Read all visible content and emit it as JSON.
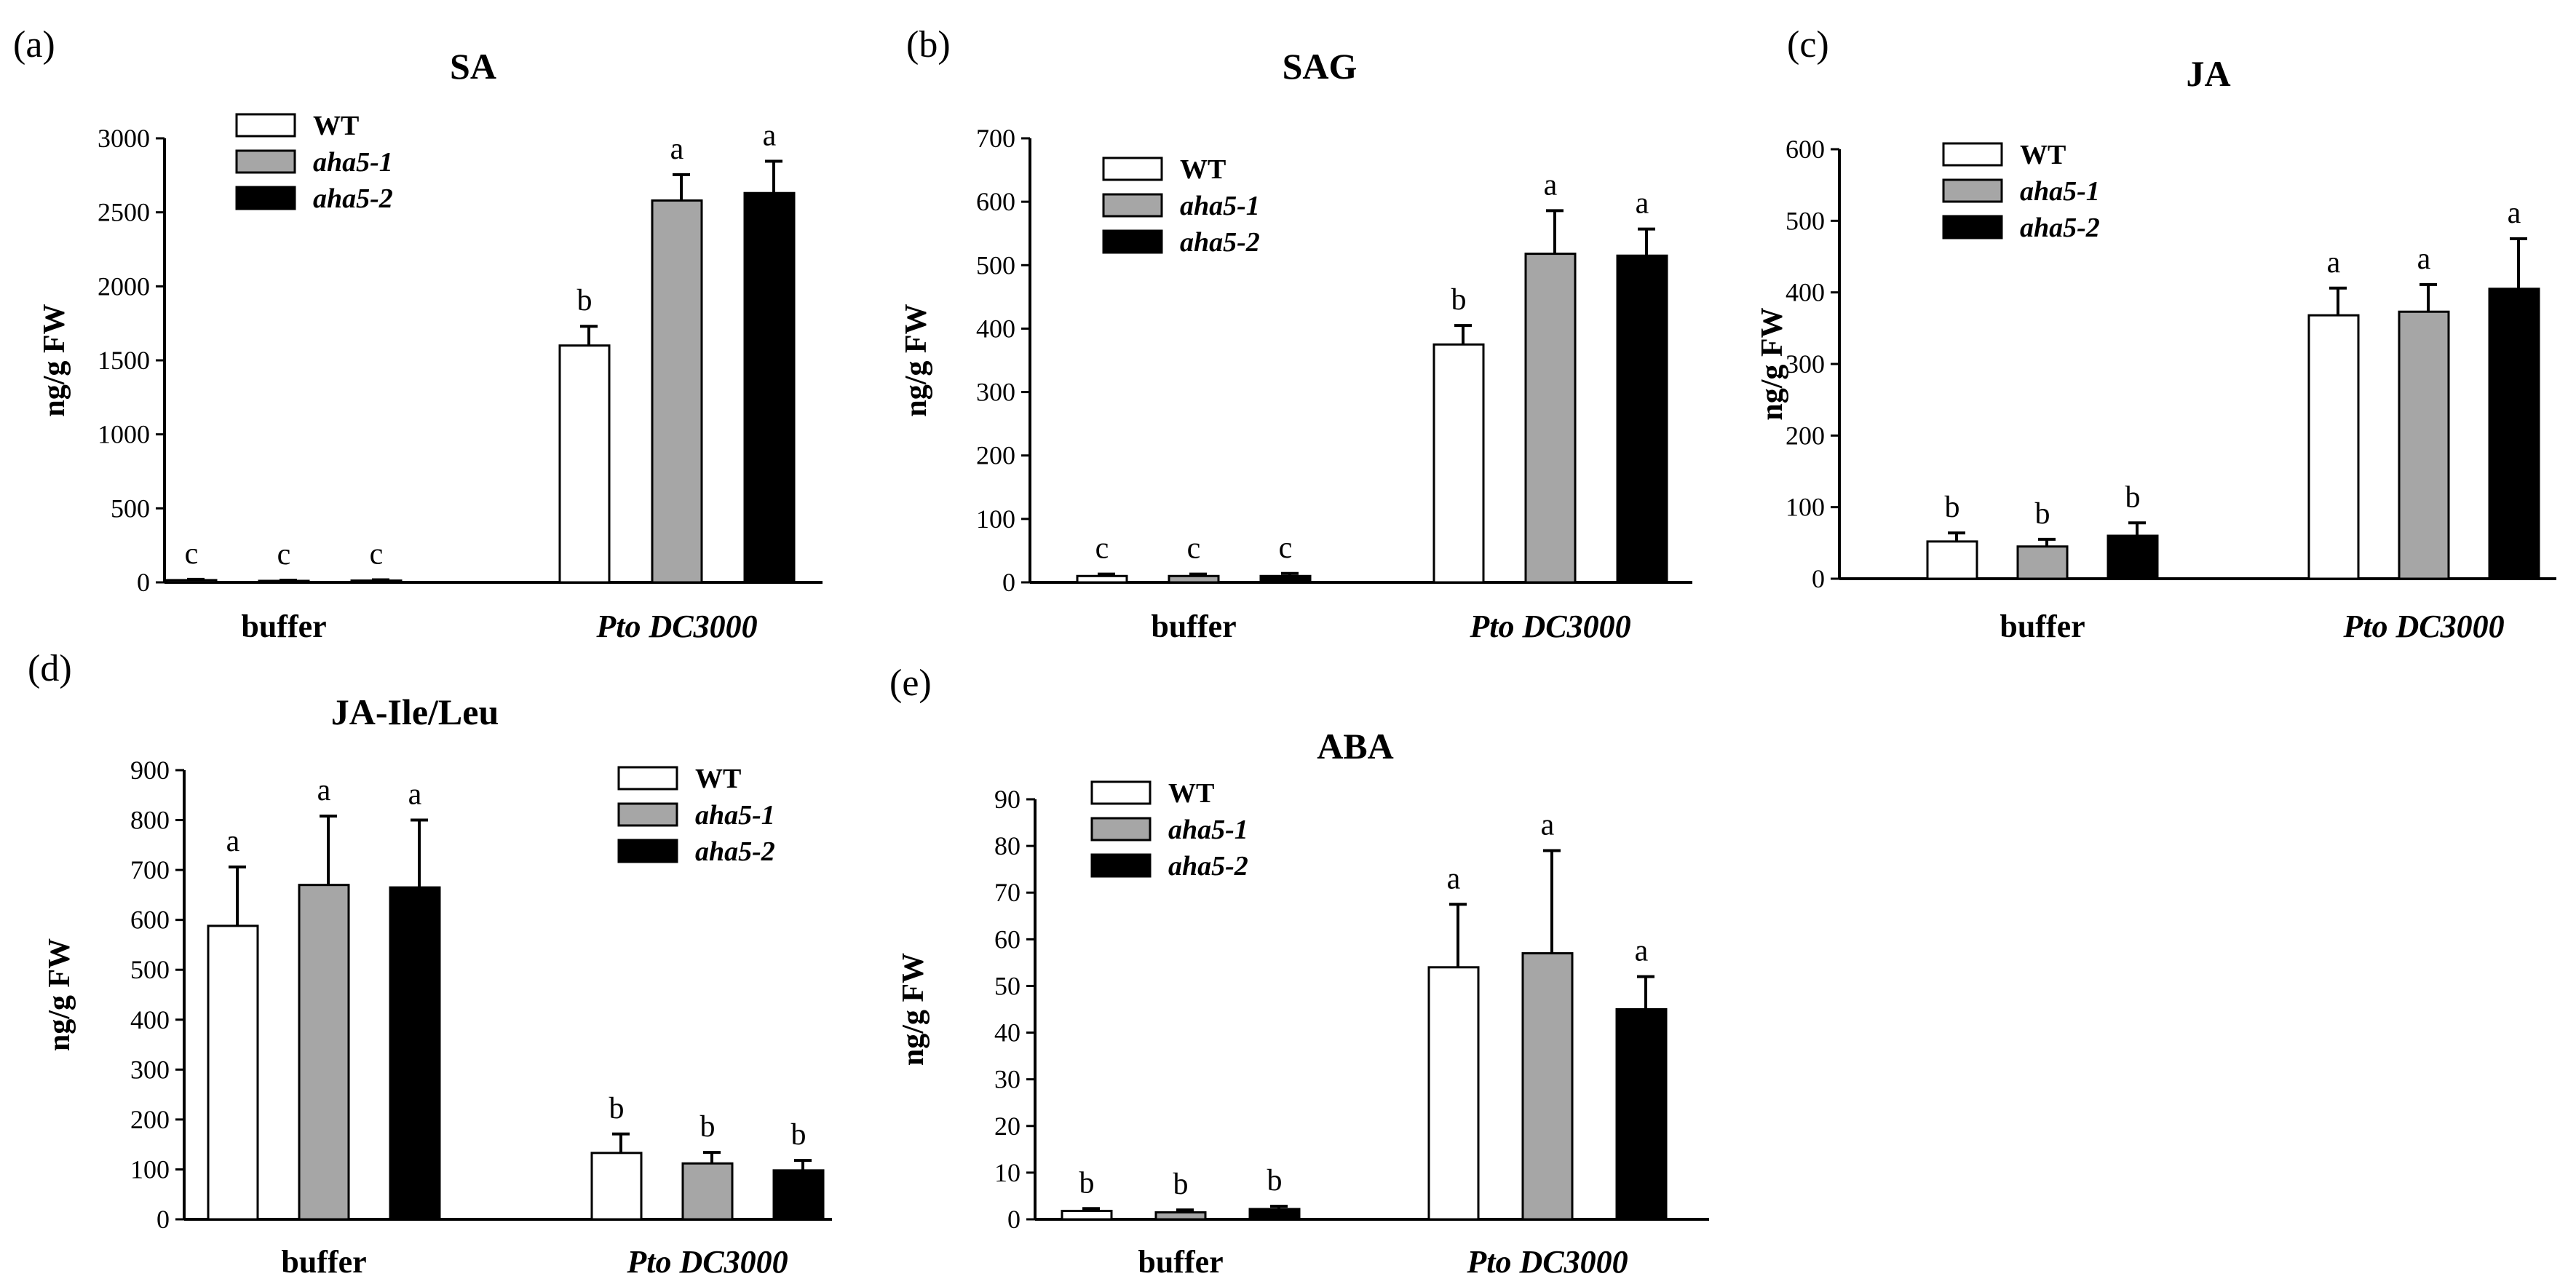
{
  "series_styles": [
    {
      "key": "WT",
      "fill": "#ffffff"
    },
    {
      "key": "aha5-1",
      "fill": "#a6a6a6"
    },
    {
      "key": "aha5-2",
      "fill": "#000000"
    }
  ],
  "chart_data": [
    {
      "type": "bar",
      "panel_label": "(a)",
      "title": "SA",
      "ylabel": "ng/g FW",
      "ylim": [
        0,
        3000
      ],
      "yticks": [
        0,
        500,
        1000,
        1500,
        2000,
        2500,
        3000
      ],
      "categories": [
        "buffer",
        "Pto DC3000"
      ],
      "legend_position": "top-left",
      "series": [
        {
          "name": "WT",
          "values": [
            15,
            1600
          ],
          "errors": [
            5,
            130
          ],
          "letters": [
            "c",
            "b"
          ]
        },
        {
          "name": "aha5-1",
          "values": [
            10,
            2580
          ],
          "errors": [
            5,
            175
          ],
          "letters": [
            "c",
            "a"
          ]
        },
        {
          "name": "aha5-2",
          "values": [
            12,
            2630
          ],
          "errors": [
            5,
            215
          ],
          "letters": [
            "c",
            "a"
          ]
        }
      ]
    },
    {
      "type": "bar",
      "panel_label": "(b)",
      "title": "SAG",
      "ylabel": "ng/g FW",
      "ylim": [
        0,
        700
      ],
      "yticks": [
        0,
        100,
        200,
        300,
        400,
        500,
        600,
        700
      ],
      "categories": [
        "buffer",
        "Pto DC3000"
      ],
      "legend_position": "top-left",
      "series": [
        {
          "name": "WT",
          "values": [
            10,
            375
          ],
          "errors": [
            3,
            30
          ],
          "letters": [
            "c",
            "b"
          ]
        },
        {
          "name": "aha5-1",
          "values": [
            10,
            518
          ],
          "errors": [
            3,
            68
          ],
          "letters": [
            "c",
            "a"
          ]
        },
        {
          "name": "aha5-2",
          "values": [
            10,
            515
          ],
          "errors": [
            4,
            42
          ],
          "letters": [
            "c",
            "a"
          ]
        }
      ]
    },
    {
      "type": "bar",
      "panel_label": "(c)",
      "title": "JA",
      "ylabel": "ng/g FW",
      "ylim": [
        0,
        600
      ],
      "yticks": [
        0,
        100,
        200,
        300,
        400,
        500,
        600
      ],
      "categories": [
        "buffer",
        "Pto DC3000"
      ],
      "legend_position": "top-left",
      "series": [
        {
          "name": "WT",
          "values": [
            52,
            368
          ],
          "errors": [
            12,
            38
          ],
          "letters": [
            "b",
            "a"
          ]
        },
        {
          "name": "aha5-1",
          "values": [
            45,
            373
          ],
          "errors": [
            10,
            38
          ],
          "letters": [
            "b",
            "a"
          ]
        },
        {
          "name": "aha5-2",
          "values": [
            60,
            405
          ],
          "errors": [
            18,
            70
          ],
          "letters": [
            "b",
            "a"
          ]
        }
      ]
    },
    {
      "type": "bar",
      "panel_label": "(d)",
      "title": "JA-Ile/Leu",
      "ylabel": "ng/g FW",
      "ylim": [
        0,
        900
      ],
      "yticks": [
        0,
        100,
        200,
        300,
        400,
        500,
        600,
        700,
        800,
        900
      ],
      "categories": [
        "buffer",
        "Pto DC3000"
      ],
      "legend_position": "top-right",
      "series": [
        {
          "name": "WT",
          "values": [
            588,
            133
          ],
          "errors": [
            118,
            38
          ],
          "letters": [
            "a",
            "b"
          ]
        },
        {
          "name": "aha5-1",
          "values": [
            670,
            112
          ],
          "errors": [
            138,
            22
          ],
          "letters": [
            "a",
            "b"
          ]
        },
        {
          "name": "aha5-2",
          "values": [
            665,
            98
          ],
          "errors": [
            135,
            20
          ],
          "letters": [
            "a",
            "b"
          ]
        }
      ]
    },
    {
      "type": "bar",
      "panel_label": "(e)",
      "title": "ABA",
      "ylabel": "ng/g FW",
      "ylim": [
        0,
        90
      ],
      "yticks": [
        0,
        10,
        20,
        30,
        40,
        50,
        60,
        70,
        80,
        90
      ],
      "categories": [
        "buffer",
        "Pto DC3000"
      ],
      "legend_position": "top-left",
      "series": [
        {
          "name": "WT",
          "values": [
            1.8,
            54
          ],
          "errors": [
            0.5,
            13.5
          ],
          "letters": [
            "b",
            "a"
          ]
        },
        {
          "name": "aha5-1",
          "values": [
            1.5,
            57
          ],
          "errors": [
            0.5,
            22
          ],
          "letters": [
            "b",
            "a"
          ]
        },
        {
          "name": "aha5-2",
          "values": [
            2.2,
            45
          ],
          "errors": [
            0.6,
            7
          ],
          "letters": [
            "b",
            "a"
          ]
        }
      ]
    }
  ]
}
